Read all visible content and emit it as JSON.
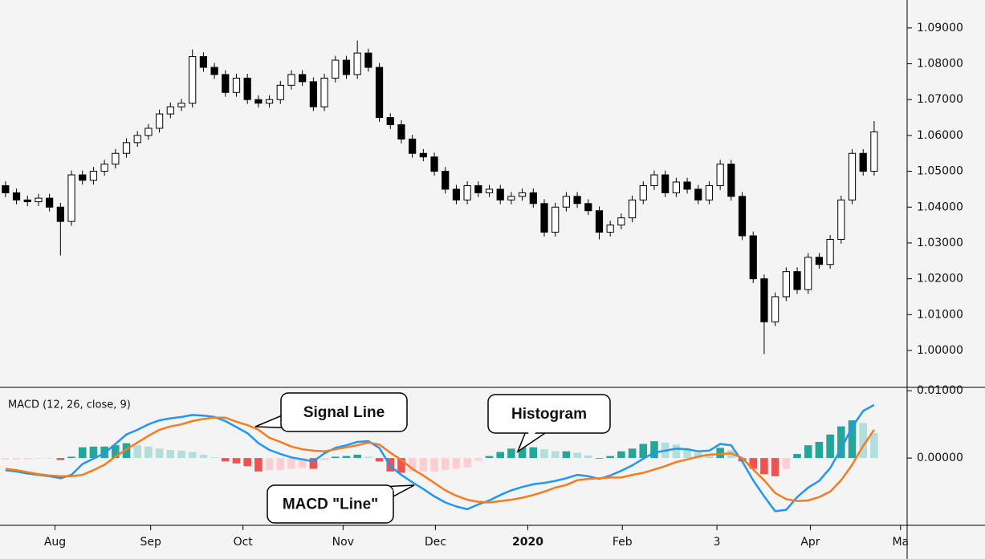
{
  "chart_data": [
    {
      "type": "candlestick",
      "x": [
        0,
        1,
        2,
        3,
        4,
        5,
        6,
        7,
        8,
        9,
        10,
        11,
        12,
        13,
        14,
        15,
        16,
        17,
        18,
        19,
        20,
        21,
        22,
        23,
        24,
        25,
        26,
        27,
        28,
        29,
        30,
        31,
        32,
        33,
        34,
        35,
        36,
        37,
        38,
        39,
        40,
        41,
        42,
        43,
        44,
        45,
        46,
        47,
        48,
        49,
        50,
        51,
        52,
        53,
        54,
        55,
        56,
        57,
        58,
        59,
        60,
        61,
        62,
        63,
        64,
        65,
        66,
        67,
        68,
        69,
        70,
        71,
        72,
        73,
        74,
        75,
        76,
        77,
        78,
        79
      ],
      "open": [
        1.046,
        1.044,
        1.042,
        1.0415,
        1.0425,
        1.04,
        1.036,
        1.049,
        1.0475,
        1.05,
        1.052,
        1.055,
        1.058,
        1.06,
        1.062,
        1.066,
        1.068,
        1.069,
        1.082,
        1.079,
        1.077,
        1.072,
        1.076,
        1.07,
        1.069,
        1.07,
        1.074,
        1.077,
        1.075,
        1.068,
        1.076,
        1.081,
        1.077,
        1.083,
        1.079,
        1.065,
        1.063,
        1.059,
        1.055,
        1.054,
        1.05,
        1.045,
        1.042,
        1.046,
        1.044,
        1.045,
        1.042,
        1.043,
        1.044,
        1.041,
        1.033,
        1.04,
        1.043,
        1.041,
        1.039,
        1.033,
        1.035,
        1.037,
        1.042,
        1.046,
        1.049,
        1.044,
        1.047,
        1.045,
        1.042,
        1.046,
        1.052,
        1.043,
        1.032,
        1.02,
        1.008,
        1.015,
        1.022,
        1.017,
        1.026,
        1.024,
        1.031,
        1.042,
        1.055,
        1.05
      ],
      "high": [
        1.0472,
        1.0452,
        1.0432,
        1.0437,
        1.0437,
        1.0412,
        1.0502,
        1.0502,
        1.0512,
        1.0532,
        1.0562,
        1.0592,
        1.0612,
        1.0632,
        1.0672,
        1.0692,
        1.0702,
        1.084,
        1.0832,
        1.0802,
        1.0782,
        1.0772,
        1.0772,
        1.0712,
        1.0712,
        1.0752,
        1.0782,
        1.0782,
        1.0762,
        1.0772,
        1.0822,
        1.0822,
        1.0865,
        1.0842,
        1.0802,
        1.0662,
        1.0642,
        1.0602,
        1.0562,
        1.0552,
        1.0512,
        1.0462,
        1.0472,
        1.0472,
        1.0462,
        1.0462,
        1.0442,
        1.0452,
        1.0452,
        1.0422,
        1.0412,
        1.0442,
        1.0442,
        1.0422,
        1.0402,
        1.0362,
        1.0382,
        1.0432,
        1.0472,
        1.0502,
        1.0502,
        1.0482,
        1.0482,
        1.0462,
        1.0472,
        1.0532,
        1.0532,
        1.0442,
        1.0332,
        1.0212,
        1.0162,
        1.0232,
        1.0232,
        1.0272,
        1.0272,
        1.0322,
        1.0432,
        1.0562,
        1.0562,
        1.064
      ],
      "low": [
        1.0428,
        1.0408,
        1.0403,
        1.0403,
        1.0388,
        1.0265,
        1.0348,
        1.0463,
        1.0463,
        1.0488,
        1.0508,
        1.0538,
        1.0568,
        1.0588,
        1.0608,
        1.0648,
        1.0668,
        1.0678,
        1.0778,
        1.0758,
        1.0708,
        1.0708,
        1.0688,
        1.0678,
        1.0678,
        1.0688,
        1.0728,
        1.0738,
        1.0668,
        1.0668,
        1.0748,
        1.0758,
        1.0758,
        1.0778,
        1.0638,
        1.0618,
        1.0578,
        1.0538,
        1.0528,
        1.0488,
        1.0438,
        1.0408,
        1.0408,
        1.0428,
        1.0428,
        1.0408,
        1.0408,
        1.0418,
        1.0398,
        1.0318,
        1.0318,
        1.0388,
        1.0398,
        1.0378,
        1.031,
        1.0318,
        1.0338,
        1.0358,
        1.0408,
        1.0448,
        1.0428,
        1.0428,
        1.0438,
        1.0408,
        1.0408,
        1.0448,
        1.0418,
        1.0308,
        1.0188,
        0.999,
        1.0068,
        1.0138,
        1.0158,
        1.0158,
        1.0228,
        1.0228,
        1.0298,
        1.0408,
        1.0488,
        1.0488
      ],
      "close": [
        1.044,
        1.042,
        1.0415,
        1.0425,
        1.04,
        1.036,
        1.049,
        1.0475,
        1.05,
        1.052,
        1.055,
        1.058,
        1.06,
        1.062,
        1.066,
        1.068,
        1.069,
        1.082,
        1.079,
        1.077,
        1.072,
        1.076,
        1.07,
        1.069,
        1.07,
        1.074,
        1.077,
        1.075,
        1.068,
        1.076,
        1.081,
        1.077,
        1.083,
        1.079,
        1.065,
        1.063,
        1.059,
        1.055,
        1.054,
        1.05,
        1.045,
        1.042,
        1.046,
        1.044,
        1.045,
        1.042,
        1.043,
        1.044,
        1.041,
        1.033,
        1.04,
        1.043,
        1.041,
        1.039,
        1.033,
        1.035,
        1.037,
        1.042,
        1.046,
        1.049,
        1.044,
        1.047,
        1.045,
        1.042,
        1.046,
        1.052,
        1.043,
        1.032,
        1.02,
        1.008,
        1.015,
        1.022,
        1.017,
        1.026,
        1.024,
        1.031,
        1.042,
        1.055,
        1.05,
        1.061
      ],
      "up_color": "#ffffff",
      "down_color": "#000000",
      "wick_color": "#000000",
      "xlim": [
        -0.5,
        82
      ],
      "ylim": [
        0.9897,
        1.0978
      ],
      "yticks": [
        {
          "value": 1.0,
          "label": "1.00000"
        },
        {
          "value": 1.01,
          "label": "1.01000"
        },
        {
          "value": 1.02,
          "label": "1.02000"
        },
        {
          "value": 1.03,
          "label": "1.03000"
        },
        {
          "value": 1.04,
          "label": "1.04000"
        },
        {
          "value": 1.05,
          "label": "1.05000"
        },
        {
          "value": 1.06,
          "label": "1.06000"
        },
        {
          "value": 1.07,
          "label": "1.07000"
        },
        {
          "value": 1.08,
          "label": "1.08000"
        },
        {
          "value": 1.09,
          "label": "1.09000"
        }
      ]
    },
    {
      "type": "macd",
      "title": "MACD (12, 26, close, 9)",
      "series": [
        {
          "color": "#2196f3",
          "values": [
            -0.0018,
            -0.002,
            -0.0023,
            -0.0025,
            -0.0027,
            -0.003,
            -0.0025,
            -0.0009,
            -0.0001,
            0.0007,
            0.0021,
            0.0035,
            0.0042,
            0.005,
            0.0056,
            0.0059,
            0.0061,
            0.0064,
            0.0063,
            0.0061,
            0.0055,
            0.0046,
            0.0037,
            0.0022,
            0.0012,
            0.0006,
            0.0001,
            -0.0002,
            -0.0005,
            0.0007,
            0.0015,
            0.0019,
            0.0024,
            0.0025,
            0.0015,
            -0.0012,
            -0.0025,
            -0.0036,
            -0.0046,
            -0.0057,
            -0.0066,
            -0.0072,
            -0.0076,
            -0.0069,
            -0.0063,
            -0.0055,
            -0.0048,
            -0.0043,
            -0.0039,
            -0.0037,
            -0.0034,
            -0.003,
            -0.0025,
            -0.0027,
            -0.0031,
            -0.0026,
            -0.0019,
            -0.0011,
            -0.0001,
            0.0008,
            0.0011,
            0.0014,
            0.0013,
            0.001,
            0.0011,
            0.0021,
            0.0019,
            -0.0005,
            -0.0033,
            -0.0057,
            -0.0079,
            -0.0077,
            -0.0058,
            -0.0044,
            -0.0034,
            -0.0015,
            0.0014,
            0.0046,
            0.007,
            0.0079
          ]
        },
        {
          "color": "#f57c1f",
          "values": [
            -0.0016,
            -0.0018,
            -0.0021,
            -0.0024,
            -0.0026,
            -0.0027,
            -0.0027,
            -0.0025,
            -0.0018,
            -0.001,
            0.0002,
            0.0013,
            0.0023,
            0.0033,
            0.0042,
            0.0047,
            0.005,
            0.0055,
            0.0058,
            0.006,
            0.006,
            0.0054,
            0.0049,
            0.0042,
            0.003,
            0.0024,
            0.0017,
            0.0013,
            0.0011,
            0.001,
            0.0013,
            0.0016,
            0.0019,
            0.0023,
            0.002,
            0.0008,
            -0.0003,
            -0.0016,
            -0.0026,
            -0.0037,
            -0.0048,
            -0.0056,
            -0.0062,
            -0.0065,
            -0.0066,
            -0.0064,
            -0.0062,
            -0.0059,
            -0.0055,
            -0.005,
            -0.0044,
            -0.004,
            -0.0033,
            -0.0031,
            -0.003,
            -0.0029,
            -0.0029,
            -0.0025,
            -0.0022,
            -0.0017,
            -0.0012,
            -0.0006,
            -0.0002,
            0.0002,
            0.0005,
            0.0006,
            0.0007,
            0.0,
            -0.0017,
            -0.0033,
            -0.0052,
            -0.0061,
            -0.0064,
            -0.0063,
            -0.0058,
            -0.005,
            -0.0033,
            -0.001,
            0.0018,
            0.0042
          ]
        }
      ],
      "histogram": {
        "values": [
          -0.0002,
          -0.0002,
          -0.0002,
          -0.0001,
          -0.0001,
          -0.0003,
          0.0002,
          0.0016,
          0.0017,
          0.0017,
          0.0019,
          0.0022,
          0.0019,
          0.0017,
          0.0014,
          0.0012,
          0.0011,
          0.0009,
          0.0005,
          0.0001,
          -0.0005,
          -0.0008,
          -0.0012,
          -0.002,
          -0.0018,
          -0.0018,
          -0.0016,
          -0.0015,
          -0.0016,
          -0.0003,
          0.0002,
          0.0003,
          0.0005,
          0.0002,
          -0.0005,
          -0.002,
          -0.0022,
          -0.002,
          -0.002,
          -0.002,
          -0.0018,
          -0.0016,
          -0.0014,
          -0.0004,
          0.0003,
          0.0009,
          0.0014,
          0.0016,
          0.0016,
          0.0013,
          0.001,
          0.001,
          0.0008,
          0.0004,
          -0.0001,
          0.0003,
          0.001,
          0.0014,
          0.0021,
          0.0025,
          0.0023,
          0.002,
          0.0015,
          0.0008,
          0.0006,
          0.0015,
          0.0012,
          -0.0005,
          -0.0016,
          -0.0024,
          -0.0027,
          -0.0016,
          0.0006,
          0.0019,
          0.0024,
          0.0035,
          0.0047,
          0.0056,
          0.0052,
          0.0037
        ],
        "colors": [
          "#26a69a",
          "#b2dfdb",
          "#ffcdd2",
          "#ef5350"
        ]
      },
      "xlim": [
        -0.5,
        82
      ],
      "ylim": [
        -0.01,
        0.0105
      ],
      "yticks": [
        {
          "value": 0,
          "label": "0.00000"
        },
        {
          "value": 0.01,
          "label": "0.01000"
        }
      ],
      "xticks": [
        {
          "value": 4.5,
          "label": "Aug"
        },
        {
          "value": 13.2,
          "label": "Sep"
        },
        {
          "value": 21.6,
          "label": "Oct"
        },
        {
          "value": 30.7,
          "label": "Nov"
        },
        {
          "value": 39.1,
          "label": "Dec"
        },
        {
          "value": 47.5,
          "label": "2020",
          "bold": true
        },
        {
          "value": 56.1,
          "label": "Feb"
        },
        {
          "value": 64.7,
          "label": "3"
        },
        {
          "value": 73.2,
          "label": "Apr"
        },
        {
          "value": 81.4,
          "label": "Ma"
        }
      ],
      "annotations": [
        {
          "text": "Signal Line"
        },
        {
          "text": "Histogram"
        },
        {
          "text": "MACD \"Line\""
        }
      ]
    }
  ]
}
